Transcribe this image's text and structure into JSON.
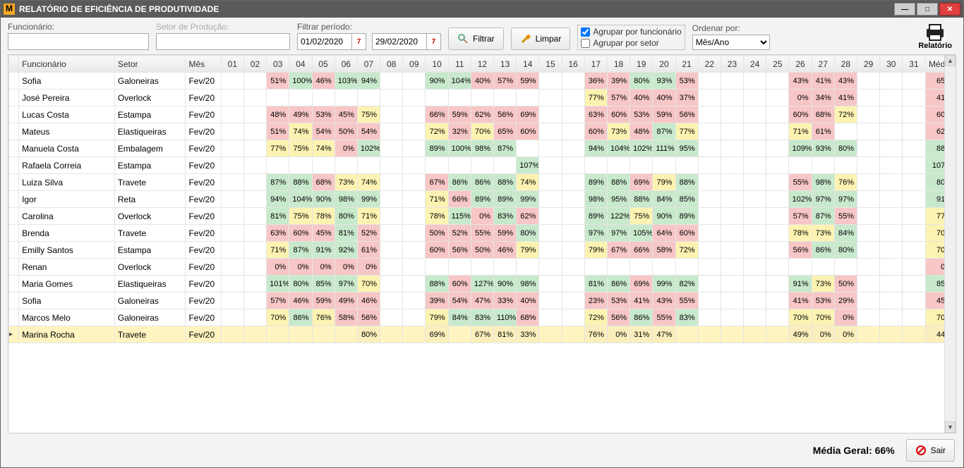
{
  "window": {
    "title": "RELATÓRIO DE EFICIÊNCIA DE PRODUTIVIDADE"
  },
  "toolbar": {
    "funcionario_label": "Funcionário:",
    "funcionario_value": "",
    "setor_label": "Setor de Produção:",
    "setor_value": "",
    "periodo_label": "Filtrar período:",
    "date_from": "01/02/2020",
    "date_to": "29/02/2020",
    "filtrar_label": "Filtrar",
    "limpar_label": "Limpar",
    "chk_funcionario_label": "Agrupar por funcionário",
    "chk_funcionario_checked": true,
    "chk_setor_label": "Agrupar por setor",
    "chk_setor_checked": false,
    "ordenar_label": "Ordenar por:",
    "ordenar_value": "Mês/Ano",
    "relatorio_label": "Relatório"
  },
  "grid": {
    "col_widths": {
      "sel": 14,
      "func": 135,
      "setor": 100,
      "mes": 50,
      "day": 32,
      "media": 42
    },
    "headers": {
      "funcionario": "Funcionário",
      "setor": "Setor",
      "mes": "Mês",
      "media": "Média"
    },
    "days": [
      "01",
      "02",
      "03",
      "04",
      "05",
      "06",
      "07",
      "08",
      "09",
      "10",
      "11",
      "12",
      "13",
      "14",
      "15",
      "16",
      "17",
      "18",
      "19",
      "20",
      "21",
      "22",
      "23",
      "24",
      "25",
      "26",
      "27",
      "28",
      "29",
      "30",
      "31"
    ],
    "colors": {
      "red_bg": "#f7c6c6",
      "green_bg": "#c8e9cc",
      "yellow_bg": "#fcf3b2",
      "selected_row_bg": "#fff4c0",
      "header_grad_top": "#f9f9f9",
      "header_grad_bot": "#e8e8e8",
      "border": "#e5e5e5"
    },
    "thresholds": {
      "yellow_min": 70,
      "green_min": 80
    },
    "selected_index": 16,
    "rows": [
      {
        "funcionario": "Sofia",
        "setor": "Galoneiras",
        "mes": "Fev/20",
        "vals": {
          "03": 51,
          "04": 100,
          "05": 46,
          "06": 103,
          "07": 94,
          "10": 90,
          "11": 104,
          "12": 40,
          "13": 57,
          "14": 59,
          "17": 36,
          "18": 39,
          "19": 80,
          "20": 93,
          "21": 53,
          "26": 43,
          "27": 41,
          "28": 43
        },
        "media": 65
      },
      {
        "funcionario": "José Pereira",
        "setor": "Overlock",
        "mes": "Fev/20",
        "vals": {
          "17": 77,
          "18": 57,
          "19": 40,
          "20": 40,
          "21": 37,
          "26": 0,
          "27": 34,
          "28": 41
        },
        "media": 41
      },
      {
        "funcionario": "Lucas Costa",
        "setor": "Estampa",
        "mes": "Fev/20",
        "vals": {
          "03": 48,
          "04": 49,
          "05": 53,
          "06": 45,
          "07": 75,
          "10": 66,
          "11": 59,
          "12": 62,
          "13": 56,
          "14": 69,
          "17": 63,
          "18": 60,
          "19": 53,
          "20": 59,
          "21": 56,
          "26": 60,
          "27": 68,
          "28": 72
        },
        "media": 60
      },
      {
        "funcionario": "Mateus",
        "setor": "Elastiqueiras",
        "mes": "Fev/20",
        "vals": {
          "03": 51,
          "04": 74,
          "05": 54,
          "06": 50,
          "07": 54,
          "10": 72,
          "11": 32,
          "12": 70,
          "13": 65,
          "14": 60,
          "17": 60,
          "18": 73,
          "19": 48,
          "20": 87,
          "21": 77,
          "26": 71,
          "27": 61
        },
        "media": 62
      },
      {
        "funcionario": "Manuela Costa",
        "setor": "Embalagem",
        "mes": "Fev/20",
        "vals": {
          "03": 77,
          "04": 75,
          "05": 74,
          "06": 0,
          "07": 102,
          "10": 89,
          "11": 100,
          "12": 98,
          "13": 87,
          "17": 94,
          "18": 104,
          "19": 102,
          "20": 111,
          "21": 95,
          "26": 109,
          "27": 93,
          "28": 80
        },
        "media": 88
      },
      {
        "funcionario": "Rafaela Correia",
        "setor": "Estampa",
        "mes": "Fev/20",
        "vals": {
          "14": 107
        },
        "media": 107
      },
      {
        "funcionario": "Luiza Silva",
        "setor": "Travete",
        "mes": "Fev/20",
        "vals": {
          "03": 87,
          "04": 88,
          "05": 68,
          "06": 73,
          "07": 74,
          "10": 67,
          "11": 86,
          "12": 86,
          "13": 88,
          "14": 74,
          "17": 89,
          "18": 88,
          "19": 69,
          "20": 79,
          "21": 88,
          "26": 55,
          "27": 98,
          "28": 76
        },
        "media": 80
      },
      {
        "funcionario": "Igor",
        "setor": "Reta",
        "mes": "Fev/20",
        "vals": {
          "03": 94,
          "04": 104,
          "05": 90,
          "06": 98,
          "07": 99,
          "10": 71,
          "11": 66,
          "12": 89,
          "13": 89,
          "14": 99,
          "17": 98,
          "18": 95,
          "19": 88,
          "20": 84,
          "21": 85,
          "26": 102,
          "27": 97,
          "28": 97
        },
        "media": 91
      },
      {
        "funcionario": "Carolina",
        "setor": "Overlock",
        "mes": "Fev/20",
        "vals": {
          "03": 81,
          "04": 75,
          "05": 78,
          "06": 80,
          "07": 71,
          "10": 78,
          "11": 115,
          "12": 0,
          "13": 83,
          "14": 62,
          "17": 89,
          "18": 122,
          "19": 75,
          "20": 90,
          "21": 89,
          "26": 57,
          "27": 87,
          "28": 55
        },
        "media": 77
      },
      {
        "funcionario": "Brenda",
        "setor": "Travete",
        "mes": "Fev/20",
        "vals": {
          "03": 63,
          "04": 60,
          "05": 45,
          "06": 81,
          "07": 52,
          "10": 50,
          "11": 52,
          "12": 55,
          "13": 59,
          "14": 80,
          "17": 97,
          "18": 97,
          "19": 105,
          "20": 64,
          "21": 60,
          "26": 78,
          "27": 73,
          "28": 84
        },
        "media": 70
      },
      {
        "funcionario": "Emilly Santos",
        "setor": "Estampa",
        "mes": "Fev/20",
        "vals": {
          "03": 71,
          "04": 87,
          "05": 91,
          "06": 92,
          "07": 61,
          "10": 60,
          "11": 56,
          "12": 50,
          "13": 46,
          "14": 79,
          "17": 79,
          "18": 67,
          "19": 66,
          "20": 58,
          "21": 72,
          "26": 56,
          "27": 86,
          "28": 80
        },
        "media": 70
      },
      {
        "funcionario": "Renan",
        "setor": "Overlock",
        "mes": "Fev/20",
        "vals": {
          "03": 0,
          "04": 0,
          "05": 0,
          "06": 0,
          "07": 0
        },
        "media": 0
      },
      {
        "funcionario": "Maria Gomes",
        "setor": "Elastiqueiras",
        "mes": "Fev/20",
        "vals": {
          "03": 101,
          "04": 80,
          "05": 85,
          "06": 97,
          "07": 70,
          "10": 88,
          "11": 60,
          "12": 127,
          "13": 90,
          "14": 98,
          "17": 81,
          "18": 86,
          "19": 69,
          "20": 99,
          "21": 82,
          "26": 91,
          "27": 73,
          "28": 50
        },
        "media": 85
      },
      {
        "funcionario": "Sofia",
        "setor": "Galoneiras",
        "mes": "Fev/20",
        "vals": {
          "03": 57,
          "04": 46,
          "05": 59,
          "06": 49,
          "07": 46,
          "10": 39,
          "11": 54,
          "12": 47,
          "13": 33,
          "14": 40,
          "17": 23,
          "18": 53,
          "19": 41,
          "20": 43,
          "21": 55,
          "26": 41,
          "27": 53,
          "28": 29
        },
        "media": 45
      },
      {
        "funcionario": "Marcos Melo",
        "setor": "Galoneiras",
        "mes": "Fev/20",
        "vals": {
          "03": 70,
          "04": 86,
          "05": 76,
          "06": 58,
          "07": 56,
          "10": 79,
          "11": 84,
          "12": 83,
          "13": 110,
          "14": 68,
          "17": 72,
          "18": 56,
          "19": 86,
          "20": 55,
          "21": 83,
          "26": 70,
          "27": 70,
          "28": 0
        },
        "media": 70
      },
      {
        "funcionario": "Marina Rocha",
        "setor": "Travete",
        "mes": "Fev/20",
        "vals": {
          "07": 80,
          "10": 69,
          "12": 67,
          "13": 81,
          "14": 33,
          "17": 76,
          "18": 0,
          "19": 31,
          "20": 47,
          "26": 49,
          "27": 0,
          "28": 0
        },
        "media": 44
      }
    ]
  },
  "footer": {
    "avg_label": "Média Geral: 66%",
    "sair_label": "Sair"
  }
}
